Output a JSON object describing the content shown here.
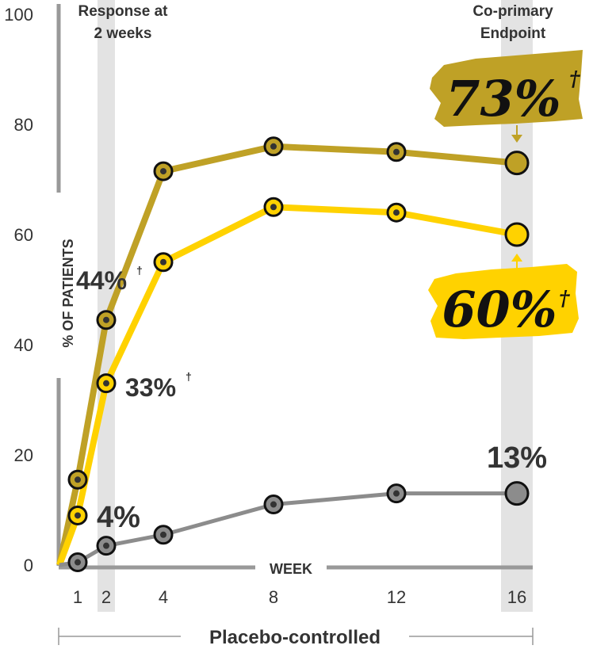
{
  "headers": {
    "left": [
      "Response at",
      "2 weeks"
    ],
    "right": [
      "Co-primary",
      "Endpoint"
    ]
  },
  "footer": "Placebo-controlled",
  "colors": {
    "series_dark": "#BFA126",
    "series_yellow": "#FFD200",
    "series_gray": "#8C8C8C",
    "band": "#E3E3E3",
    "text": "#333333"
  },
  "chart_data": {
    "type": "line",
    "x": [
      1,
      2,
      4,
      8,
      12,
      16
    ],
    "xlabel": "WEEK",
    "ylabel": "% OF PATIENTS",
    "xticks": [
      "1",
      "2",
      "4",
      "8",
      "12",
      "16"
    ],
    "yticks": [
      "0",
      "20",
      "40",
      "60",
      "80",
      "100"
    ],
    "ylim": [
      0,
      100
    ],
    "highlight_weeks": [
      2,
      16
    ],
    "series": [
      {
        "color": "#BFA126",
        "values": [
          15.5,
          44.5,
          71.5,
          76,
          75,
          73
        ]
      },
      {
        "color": "#FFD200",
        "values": [
          9,
          33,
          55,
          65,
          64,
          60
        ]
      },
      {
        "color": "#8C8C8C",
        "values": [
          0.5,
          3.5,
          5.5,
          11,
          13,
          13
        ]
      }
    ],
    "annotations": {
      "dark_week2": "44%",
      "dark_week2_mark": "†",
      "yellow_week2": "33%",
      "yellow_week2_mark": "†",
      "gray_week2": "4%",
      "dark_week16": "73%",
      "dark_week16_mark": "†",
      "yellow_week16": "60%",
      "yellow_week16_mark": "†",
      "gray_week16": "13%"
    }
  }
}
